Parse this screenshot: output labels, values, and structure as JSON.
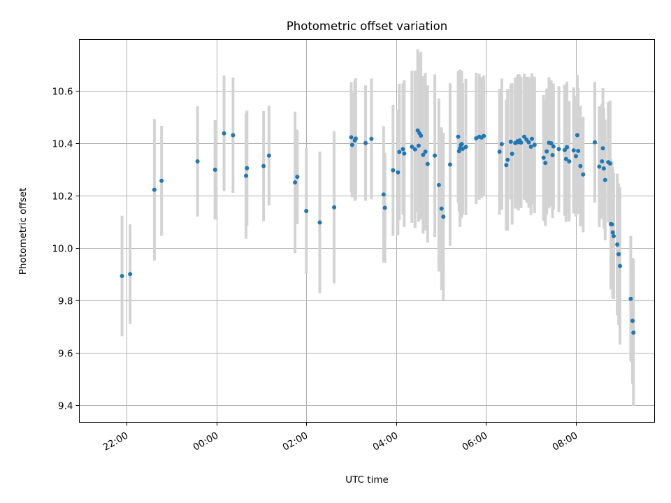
{
  "chart_data": {
    "type": "scatter",
    "title": "Photometric offset variation",
    "xlabel": "UTC time",
    "ylabel": "Photometric offset",
    "x_unit": "hours after 00:00 UTC",
    "xlim": [
      -3.05,
      9.75
    ],
    "ylim": [
      9.335,
      10.795
    ],
    "xticks": [
      {
        "value": -2,
        "label": "22:00"
      },
      {
        "value": 0,
        "label": "00:00"
      },
      {
        "value": 2,
        "label": "02:00"
      },
      {
        "value": 4,
        "label": "04:00"
      },
      {
        "value": 6,
        "label": "06:00"
      },
      {
        "value": 8,
        "label": "08:00"
      }
    ],
    "yticks": [
      9.4,
      9.6,
      9.8,
      10.0,
      10.2,
      10.4,
      10.6
    ],
    "grid": true,
    "point_color": "#1f77b4",
    "errorbar_color": "#d3d3d3",
    "series": [
      {
        "points": [
          [
            -2.1,
            9.893,
            0.23
          ],
          [
            -1.92,
            9.9,
            0.19
          ],
          [
            -1.38,
            10.222,
            0.27
          ],
          [
            -1.22,
            10.256,
            0.21
          ],
          [
            -0.42,
            10.33,
            0.21
          ],
          [
            -0.03,
            10.298,
            0.19
          ],
          [
            0.17,
            10.437,
            0.22
          ],
          [
            0.37,
            10.43,
            0.22
          ],
          [
            0.66,
            10.275,
            0.24
          ],
          [
            0.68,
            10.304,
            0.22
          ],
          [
            1.05,
            10.312,
            0.21
          ],
          [
            1.17,
            10.352,
            0.19
          ],
          [
            1.75,
            10.25,
            0.27
          ],
          [
            1.8,
            10.271,
            0.18
          ],
          [
            2.0,
            10.141,
            0.24
          ],
          [
            2.3,
            10.097,
            0.27
          ],
          [
            2.62,
            10.155,
            0.29
          ],
          [
            3.0,
            10.422,
            0.21
          ],
          [
            3.02,
            10.393,
            0.2
          ],
          [
            3.08,
            10.41,
            0.23
          ],
          [
            3.1,
            10.417,
            0.23
          ],
          [
            3.32,
            10.4,
            0.22
          ],
          [
            3.45,
            10.416,
            0.23
          ],
          [
            3.72,
            10.204,
            0.26
          ],
          [
            3.75,
            10.153,
            0.21
          ],
          [
            3.93,
            10.296,
            0.25
          ],
          [
            4.04,
            10.288,
            0.24
          ],
          [
            4.07,
            10.366,
            0.26
          ],
          [
            4.15,
            10.377,
            0.25
          ],
          [
            4.18,
            10.36,
            0.28
          ],
          [
            4.35,
            10.386,
            0.29
          ],
          [
            4.42,
            10.376,
            0.3
          ],
          [
            4.48,
            10.448,
            0.31
          ],
          [
            4.5,
            10.39,
            0.29
          ],
          [
            4.52,
            10.437,
            0.3
          ],
          [
            4.55,
            10.428,
            0.32
          ],
          [
            4.6,
            10.355,
            0.3
          ],
          [
            4.65,
            10.367,
            0.3
          ],
          [
            4.7,
            10.32,
            0.3
          ],
          [
            4.86,
            10.352,
            0.31
          ],
          [
            4.95,
            10.24,
            0.33
          ],
          [
            5.01,
            10.15,
            0.31
          ],
          [
            5.05,
            10.119,
            0.32
          ],
          [
            5.2,
            10.318,
            0.31
          ],
          [
            5.38,
            10.424,
            0.25
          ],
          [
            5.4,
            10.369,
            0.23
          ],
          [
            5.42,
            10.38,
            0.3
          ],
          [
            5.44,
            10.393,
            0.28
          ],
          [
            5.46,
            10.396,
            0.28
          ],
          [
            5.48,
            10.378,
            0.25
          ],
          [
            5.55,
            10.385,
            0.26
          ],
          [
            5.78,
            10.418,
            0.25
          ],
          [
            5.85,
            10.424,
            0.24
          ],
          [
            5.9,
            10.421,
            0.23
          ],
          [
            5.95,
            10.427,
            0.23
          ],
          [
            6.3,
            10.367,
            0.24
          ],
          [
            6.35,
            10.396,
            0.25
          ],
          [
            6.45,
            10.316,
            0.25
          ],
          [
            6.48,
            10.336,
            0.27
          ],
          [
            6.55,
            10.405,
            0.22
          ],
          [
            6.58,
            10.359,
            0.27
          ],
          [
            6.65,
            10.4,
            0.25
          ],
          [
            6.7,
            10.407,
            0.25
          ],
          [
            6.72,
            10.403,
            0.26
          ],
          [
            6.75,
            10.41,
            0.25
          ],
          [
            6.78,
            10.402,
            0.25
          ],
          [
            6.85,
            10.424,
            0.24
          ],
          [
            6.9,
            10.413,
            0.24
          ],
          [
            6.95,
            10.403,
            0.25
          ],
          [
            7.0,
            10.386,
            0.26
          ],
          [
            7.02,
            10.416,
            0.25
          ],
          [
            7.08,
            10.393,
            0.26
          ],
          [
            7.28,
            10.344,
            0.24
          ],
          [
            7.32,
            10.324,
            0.24
          ],
          [
            7.35,
            10.368,
            0.24
          ],
          [
            7.4,
            10.401,
            0.25
          ],
          [
            7.45,
            10.399,
            0.24
          ],
          [
            7.48,
            10.354,
            0.24
          ],
          [
            7.5,
            10.387,
            0.24
          ],
          [
            7.62,
            10.377,
            0.24
          ],
          [
            7.75,
            10.373,
            0.25
          ],
          [
            7.78,
            10.339,
            0.24
          ],
          [
            7.8,
            10.384,
            0.25
          ],
          [
            7.85,
            10.33,
            0.23
          ],
          [
            7.95,
            10.372,
            0.24
          ],
          [
            8.0,
            10.35,
            0.23
          ],
          [
            8.03,
            10.43,
            0.23
          ],
          [
            8.05,
            10.37,
            0.24
          ],
          [
            8.1,
            10.312,
            0.23
          ],
          [
            8.16,
            10.28,
            0.22
          ],
          [
            8.42,
            10.403,
            0.23
          ],
          [
            8.52,
            10.31,
            0.23
          ],
          [
            8.58,
            10.33,
            0.22
          ],
          [
            8.6,
            10.38,
            0.23
          ],
          [
            8.62,
            10.303,
            0.23
          ],
          [
            8.65,
            10.259,
            0.23
          ],
          [
            8.72,
            10.327,
            0.23
          ],
          [
            8.76,
            10.322,
            0.24
          ],
          [
            8.78,
            10.091,
            0.25
          ],
          [
            8.8,
            10.09,
            0.24
          ],
          [
            8.82,
            10.059,
            0.25
          ],
          [
            8.84,
            10.045,
            0.24
          ],
          [
            8.92,
            10.013,
            0.27
          ],
          [
            8.95,
            9.976,
            0.27
          ],
          [
            8.98,
            9.931,
            0.3
          ],
          [
            9.22,
            9.806,
            0.24
          ],
          [
            9.26,
            9.722,
            0.24
          ],
          [
            9.28,
            9.677,
            0.28
          ]
        ]
      }
    ]
  }
}
